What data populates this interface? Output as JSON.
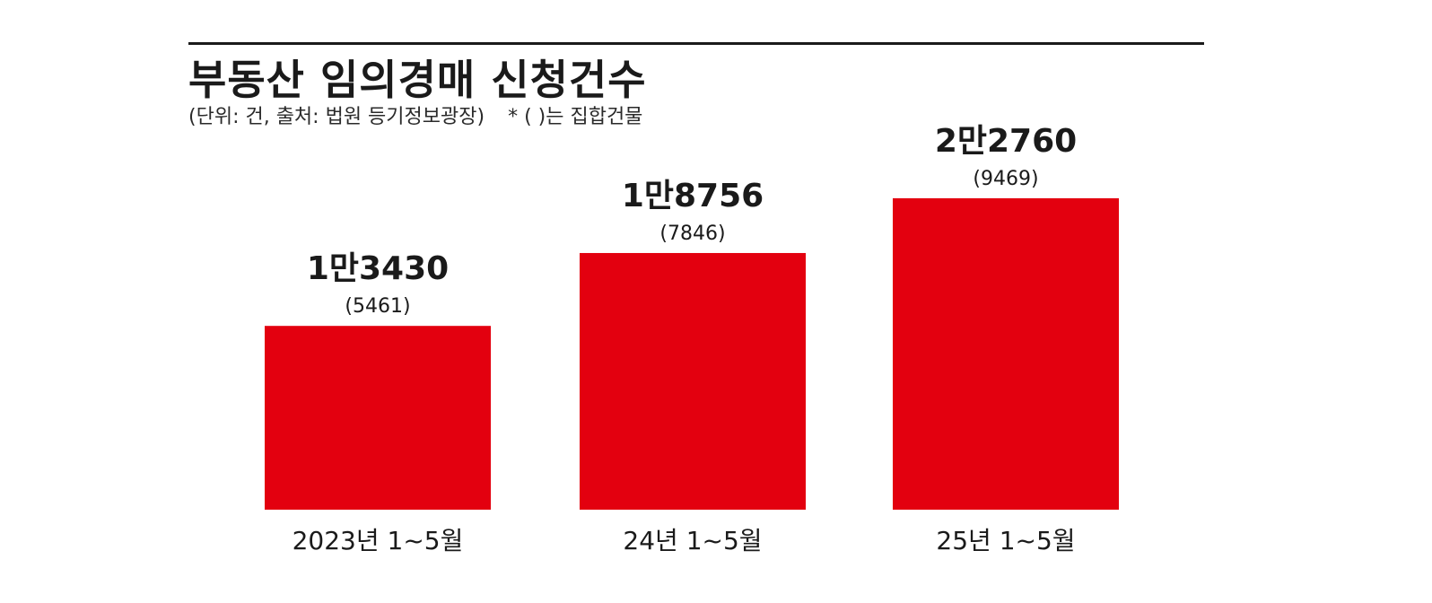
{
  "header": {
    "title": "부동산 임의경매 신청건수",
    "unit_note": "(단위: 건, 출처: 법원 등기정보광장)",
    "footnote": "* ( )는 집합건물"
  },
  "colors": {
    "bar": "#e3000f",
    "text": "#1a1a1a"
  },
  "chart_data": {
    "type": "bar",
    "title": "부동산 임의경매 신청건수",
    "xlabel": "",
    "ylabel": "",
    "categories": [
      "2023년 1~5월",
      "24년 1~5월",
      "25년 1~5월"
    ],
    "series": [
      {
        "values": [
          13430,
          18756,
          22760
        ]
      },
      {
        "values": [
          5461,
          7846,
          9469
        ]
      }
    ],
    "value_labels": [
      "1만3430",
      "1만8756",
      "2만2760"
    ],
    "sub_labels": [
      "(5461)",
      "(7846)",
      "(9469)"
    ],
    "ylim": [
      0,
      25000
    ],
    "grid": false,
    "legend": "none"
  }
}
